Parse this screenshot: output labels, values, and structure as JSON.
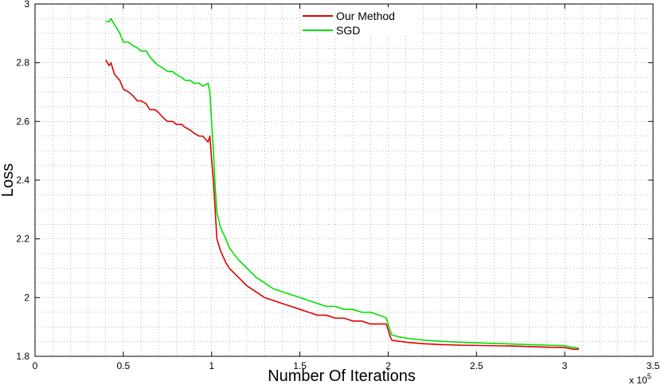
{
  "chart_data": {
    "type": "line",
    "title": "",
    "xlabel": "Number Of Iterations",
    "ylabel": "Loss",
    "x_multiplier_label": "x 10",
    "x_multiplier_exponent": "5",
    "xlim": [
      0,
      3.5
    ],
    "ylim": [
      1.8,
      3.0
    ],
    "x_ticks": [
      0,
      0.5,
      1,
      1.5,
      2,
      2.5,
      3,
      3.5
    ],
    "x_tick_labels": [
      "0",
      "0.5",
      "1",
      "1.5",
      "2",
      "2.5",
      "3",
      "3.5"
    ],
    "y_ticks": [
      1.8,
      2.0,
      2.2,
      2.4,
      2.6,
      2.8,
      3.0
    ],
    "y_tick_labels": [
      "1.8",
      "2",
      "2.2",
      "2.4",
      "2.6",
      "2.8",
      "3"
    ],
    "grid": true,
    "legend_position": "top-center",
    "series": [
      {
        "name": "Our Method",
        "color": "#e00000",
        "x": [
          0.4,
          0.42,
          0.43,
          0.45,
          0.48,
          0.5,
          0.53,
          0.55,
          0.58,
          0.6,
          0.63,
          0.65,
          0.68,
          0.7,
          0.73,
          0.75,
          0.78,
          0.8,
          0.83,
          0.85,
          0.88,
          0.9,
          0.93,
          0.95,
          0.98,
          0.99,
          1.0,
          1.01,
          1.02,
          1.03,
          1.05,
          1.08,
          1.1,
          1.15,
          1.2,
          1.25,
          1.3,
          1.35,
          1.4,
          1.45,
          1.5,
          1.55,
          1.6,
          1.65,
          1.7,
          1.75,
          1.8,
          1.85,
          1.9,
          1.95,
          1.99,
          2.0,
          2.01,
          2.02,
          2.05,
          2.1,
          2.2,
          2.3,
          2.4,
          2.5,
          2.6,
          2.7,
          2.8,
          2.9,
          3.0,
          3.05,
          3.08
        ],
        "y": [
          2.81,
          2.79,
          2.8,
          2.76,
          2.74,
          2.71,
          2.7,
          2.69,
          2.67,
          2.67,
          2.66,
          2.64,
          2.64,
          2.63,
          2.61,
          2.6,
          2.6,
          2.59,
          2.59,
          2.58,
          2.57,
          2.56,
          2.55,
          2.55,
          2.53,
          2.55,
          2.47,
          2.4,
          2.3,
          2.2,
          2.16,
          2.12,
          2.1,
          2.07,
          2.04,
          2.02,
          2.0,
          1.99,
          1.98,
          1.97,
          1.96,
          1.95,
          1.94,
          1.94,
          1.93,
          1.93,
          1.92,
          1.92,
          1.91,
          1.91,
          1.91,
          1.89,
          1.87,
          1.855,
          1.852,
          1.848,
          1.843,
          1.84,
          1.838,
          1.837,
          1.836,
          1.835,
          1.833,
          1.831,
          1.83,
          1.824,
          1.824
        ]
      },
      {
        "name": "SGD",
        "color": "#00e000",
        "x": [
          0.4,
          0.42,
          0.43,
          0.45,
          0.48,
          0.5,
          0.53,
          0.55,
          0.58,
          0.6,
          0.63,
          0.65,
          0.68,
          0.7,
          0.73,
          0.75,
          0.78,
          0.8,
          0.83,
          0.85,
          0.88,
          0.9,
          0.93,
          0.95,
          0.98,
          0.99,
          1.0,
          1.01,
          1.02,
          1.03,
          1.05,
          1.08,
          1.1,
          1.15,
          1.2,
          1.25,
          1.3,
          1.35,
          1.4,
          1.45,
          1.5,
          1.55,
          1.6,
          1.65,
          1.7,
          1.75,
          1.8,
          1.85,
          1.9,
          1.95,
          1.99,
          2.0,
          2.01,
          2.02,
          2.05,
          2.1,
          2.2,
          2.3,
          2.4,
          2.5,
          2.6,
          2.7,
          2.8,
          2.9,
          3.0,
          3.05,
          3.08
        ],
        "y": [
          2.94,
          2.94,
          2.95,
          2.93,
          2.9,
          2.87,
          2.87,
          2.86,
          2.85,
          2.84,
          2.84,
          2.82,
          2.8,
          2.79,
          2.78,
          2.77,
          2.77,
          2.76,
          2.75,
          2.74,
          2.74,
          2.73,
          2.73,
          2.72,
          2.73,
          2.7,
          2.6,
          2.5,
          2.38,
          2.29,
          2.24,
          2.2,
          2.17,
          2.13,
          2.1,
          2.07,
          2.05,
          2.03,
          2.02,
          2.01,
          2.0,
          1.99,
          1.98,
          1.97,
          1.97,
          1.96,
          1.96,
          1.95,
          1.95,
          1.94,
          1.93,
          1.91,
          1.89,
          1.873,
          1.868,
          1.862,
          1.855,
          1.851,
          1.848,
          1.846,
          1.844,
          1.842,
          1.84,
          1.838,
          1.836,
          1.83,
          1.828
        ]
      }
    ]
  }
}
